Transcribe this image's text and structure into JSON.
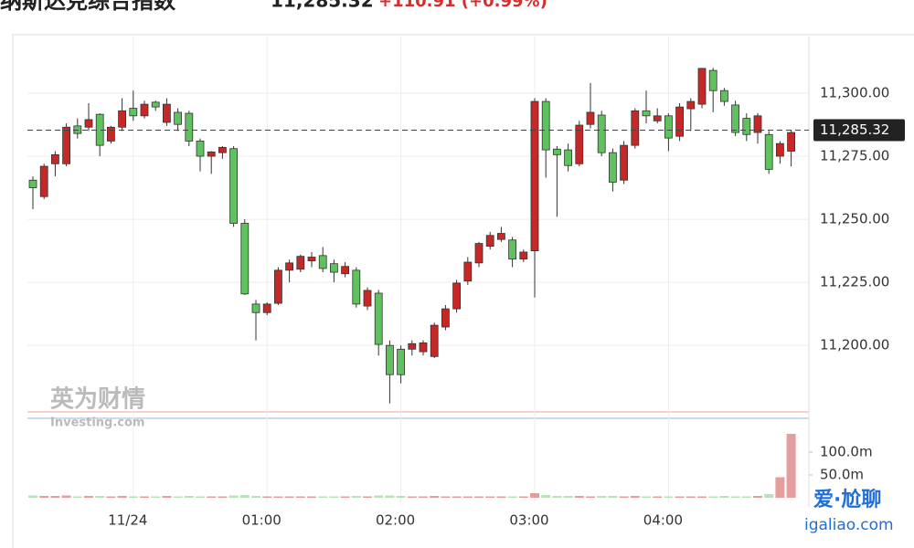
{
  "chart_data": {
    "type": "candlestick",
    "title": "纳斯达克综合指数",
    "change": "+110.91 (+0.99%)",
    "last_price": {
      "value": 11285.32,
      "label": "11,285.32"
    },
    "up_color": "#c62828",
    "down_color": "#5fc25f",
    "grid": true,
    "watermarks": [
      "英为财情",
      "Investing.com",
      "爱·尬聊",
      "igaliao.com"
    ],
    "categories": [
      null,
      null,
      null,
      null,
      null,
      null,
      null,
      null,
      null,
      "11/24",
      null,
      null,
      null,
      null,
      null,
      null,
      null,
      null,
      null,
      null,
      null,
      "01:00",
      null,
      null,
      null,
      null,
      null,
      null,
      null,
      null,
      null,
      null,
      null,
      "02:00",
      null,
      null,
      null,
      null,
      null,
      null,
      null,
      null,
      null,
      null,
      null,
      "03:00",
      null,
      null,
      null,
      null,
      null,
      null,
      null,
      null,
      null,
      null,
      null,
      "04:00",
      null,
      null,
      null,
      null,
      null,
      null,
      null,
      null,
      null,
      null,
      null
    ],
    "open": [
      11265.5,
      11259,
      11272,
      11272,
      11287,
      11286.5,
      11291.6,
      11281,
      11286.5,
      11294,
      11291,
      11296.4,
      11288.4,
      11292.4,
      11292,
      11281,
      11275,
      11276.4,
      11278,
      11248.4,
      11216.4,
      11213,
      11216.7,
      11229.8,
      11230.2,
      11233.5,
      11235.6,
      11232.4,
      11228.4,
      11229.8,
      11215.6,
      11220.7,
      11200,
      11198.5,
      11198.5,
      11197.5,
      11195.6,
      11207.3,
      11214.5,
      11225.5,
      11232.7,
      11239.3,
      11242,
      11241.8,
      11234.2,
      11237.5,
      11296.7,
      11277.8,
      11277.5,
      11272,
      11287.6,
      11291.3,
      11276.4,
      11265.5,
      11279.3,
      11293,
      11289,
      11291,
      11282.9,
      11293.8,
      11295.6,
      11309,
      11301,
      11295.3,
      11290,
      11284.4,
      11283.6,
      11275,
      11277
    ],
    "high": [
      11267,
      11272,
      11277,
      11288,
      11290,
      11296,
      11292,
      11287,
      11298,
      11301,
      11297,
      11297,
      11298,
      11294,
      11293,
      11282,
      11277,
      11279,
      11279,
      11250,
      11218,
      11217,
      11231,
      11234,
      11236,
      11237,
      11239,
      11234,
      11233,
      11231,
      11223,
      11222,
      11202,
      11200,
      11202,
      11202,
      11209,
      11216,
      11226,
      11235,
      11241,
      11245,
      11247,
      11243,
      11238,
      11298,
      11298,
      11279,
      11280,
      11289,
      11304,
      11293,
      11278,
      11281,
      11294,
      11301,
      11294,
      11292,
      11296,
      11298,
      11310,
      11310,
      11302,
      11297,
      11292,
      11292,
      11285,
      11281,
      11285.5
    ],
    "low": [
      11254,
      11258,
      11267,
      11271,
      11282,
      11285,
      11275,
      11280,
      11285,
      11289,
      11290,
      11293,
      11287,
      11285,
      11279,
      11269,
      11268,
      11274,
      11247,
      11220,
      11202,
      11212,
      11216,
      11225,
      11229,
      11231,
      11229,
      11225,
      11227,
      11215,
      11214,
      11196,
      11177,
      11185,
      11196,
      11196,
      11195,
      11206,
      11213,
      11224,
      11231,
      11238,
      11241,
      11231,
      11233,
      11219,
      11266.5,
      11251,
      11269,
      11271,
      11286,
      11275,
      11261,
      11264,
      11278,
      11288,
      11288,
      11277,
      11281,
      11285,
      11294,
      11292.4,
      11295,
      11283,
      11281,
      11280,
      11268,
      11272,
      11271
    ],
    "close": [
      11262.5,
      11271,
      11275.6,
      11286.5,
      11284,
      11289.5,
      11279.3,
      11286.5,
      11293,
      11291,
      11295.6,
      11294.5,
      11295.6,
      11287.6,
      11281,
      11275,
      11276.7,
      11278.5,
      11248.4,
      11220.4,
      11213,
      11216.4,
      11229.8,
      11232.7,
      11235.3,
      11235,
      11230.5,
      11229,
      11231.3,
      11216.4,
      11221.8,
      11200.4,
      11188.4,
      11188.4,
      11200.7,
      11201,
      11208,
      11214.5,
      11224.7,
      11233,
      11240.4,
      11243.6,
      11244.4,
      11234.2,
      11237,
      11296.7,
      11277.5,
      11275.6,
      11271.3,
      11287.3,
      11292.4,
      11276.4,
      11264.7,
      11279.3,
      11293,
      11291,
      11291,
      11282.2,
      11294.5,
      11296.7,
      11309.8,
      11301,
      11296.7,
      11284.4,
      11283.6,
      11291,
      11269.8,
      11280,
      11284.4
    ],
    "ylim": [
      11174,
      11317
    ],
    "yticks": [
      {
        "value": 11200,
        "label": "11,200.00"
      },
      {
        "value": 11225,
        "label": "11,225.00"
      },
      {
        "value": 11250,
        "label": "11,250.00"
      },
      {
        "value": 11275,
        "label": "11,275.00"
      },
      {
        "value": 11300,
        "label": "11,300.00"
      }
    ],
    "volume": {
      "values": [
        5000000,
        4000000,
        4000000,
        5000000,
        3000000,
        4000000,
        4000000,
        3000000,
        4000000,
        3000000,
        3000000,
        3000000,
        4000000,
        3000000,
        4000000,
        3000000,
        3000000,
        3000000,
        5000000,
        6000000,
        4000000,
        3000000,
        3000000,
        3000000,
        3000000,
        3000000,
        3000000,
        3000000,
        3000000,
        4000000,
        3000000,
        5000000,
        5000000,
        4000000,
        3000000,
        3000000,
        4000000,
        3000000,
        3000000,
        3000000,
        3000000,
        3000000,
        3000000,
        3000000,
        3000000,
        10000000,
        6000000,
        4000000,
        4000000,
        4000000,
        3000000,
        4000000,
        4000000,
        3000000,
        4000000,
        3000000,
        3000000,
        3000000,
        3000000,
        3000000,
        3000000,
        3000000,
        4000000,
        3000000,
        3000000,
        4000000,
        8000000,
        45000000,
        140000000
      ],
      "ylim": [
        0,
        170000000
      ],
      "yticks": [
        {
          "value": 50000000,
          "label": "50.0m"
        },
        {
          "value": 100000000,
          "label": "100.0m"
        }
      ]
    }
  }
}
